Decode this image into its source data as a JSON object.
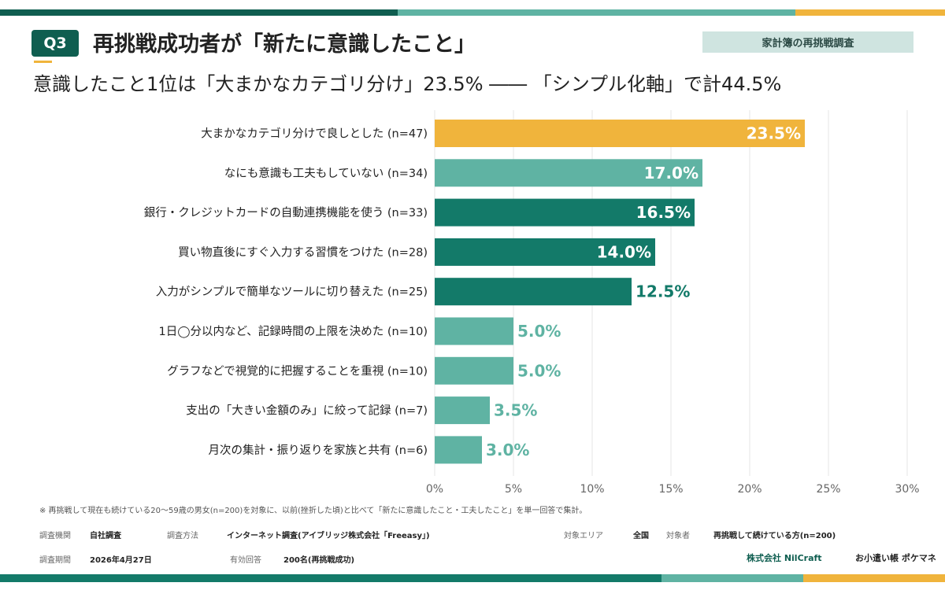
{
  "header": {
    "q_label": "Q3",
    "title": "再挑戦成功者が「新たに意識したこと」",
    "tag": "家計簿の再挑戦調査",
    "subtitle": "意識したこと1位は「大まかなカテゴリ分け」23.5% ―― 「シンプル化軸」で計44.5%"
  },
  "colors": {
    "dark_green": "#0f5e50",
    "mid_green": "#137a69",
    "light_teal": "#5fb3a3",
    "yellow": "#f0b43c",
    "grid": "#e6e6e6"
  },
  "chart_data": {
    "type": "bar",
    "orientation": "horizontal",
    "categories": [
      "大まかなカテゴリ分けで良しとした (n=47)",
      "なにも意識も工夫もしていない (n=34)",
      "銀行・クレジットカードの自動連携機能を使う (n=33)",
      "買い物直後にすぐ入力する習慣をつけた (n=28)",
      "入力がシンプルで簡単なツールに切り替えた (n=25)",
      "1日◯分以内など、記録時間の上限を決めた (n=10)",
      "グラフなどで視覚的に把握することを重視 (n=10)",
      "支出の「大きい金額のみ」に絞って記録 (n=7)",
      "月次の集計・振り返りを家族と共有 (n=6)"
    ],
    "values": [
      23.5,
      17.0,
      16.5,
      14.0,
      12.5,
      5.0,
      5.0,
      3.5,
      3.0
    ],
    "value_labels": [
      "23.5%",
      "17.0%",
      "16.5%",
      "14.0%",
      "12.5%",
      "5.0%",
      "5.0%",
      "3.5%",
      "3.0%"
    ],
    "bar_colors": [
      "#f0b43c",
      "#5fb3a3",
      "#137a69",
      "#137a69",
      "#137a69",
      "#5fb3a3",
      "#5fb3a3",
      "#5fb3a3",
      "#5fb3a3"
    ],
    "xlim": [
      0,
      30
    ],
    "xticks": [
      0,
      5,
      10,
      15,
      20,
      25,
      30
    ],
    "xtick_labels": [
      "0%",
      "5%",
      "10%",
      "15%",
      "20%",
      "25%",
      "30%"
    ],
    "grid": true
  },
  "footer": {
    "note": "※ 再挑戦して現在も続けている20〜59歳の男女(n=200)を対象に、以前(挫折した頃)と比べて「新たに意識したこと・工夫したこと」を単一回答で集計。",
    "row1": [
      {
        "key": "調査機関",
        "value": "自社調査"
      },
      {
        "key": "調査方法",
        "value": "インターネット調査(アイブリッジ株式会社「Freeasy」)"
      },
      {
        "key": "対象エリア",
        "value": "全国"
      },
      {
        "key": "対象者",
        "value": "再挑戦して続けている方(n=200)"
      }
    ],
    "row2": [
      {
        "key": "調査期間",
        "value": "2026年4月27日"
      },
      {
        "key": "有効回答",
        "value": "200名(再挑戦成功)"
      }
    ],
    "brand_company": "株式会社 NilCraft",
    "brand_service": "お小遣い帳 ポケマネ"
  }
}
